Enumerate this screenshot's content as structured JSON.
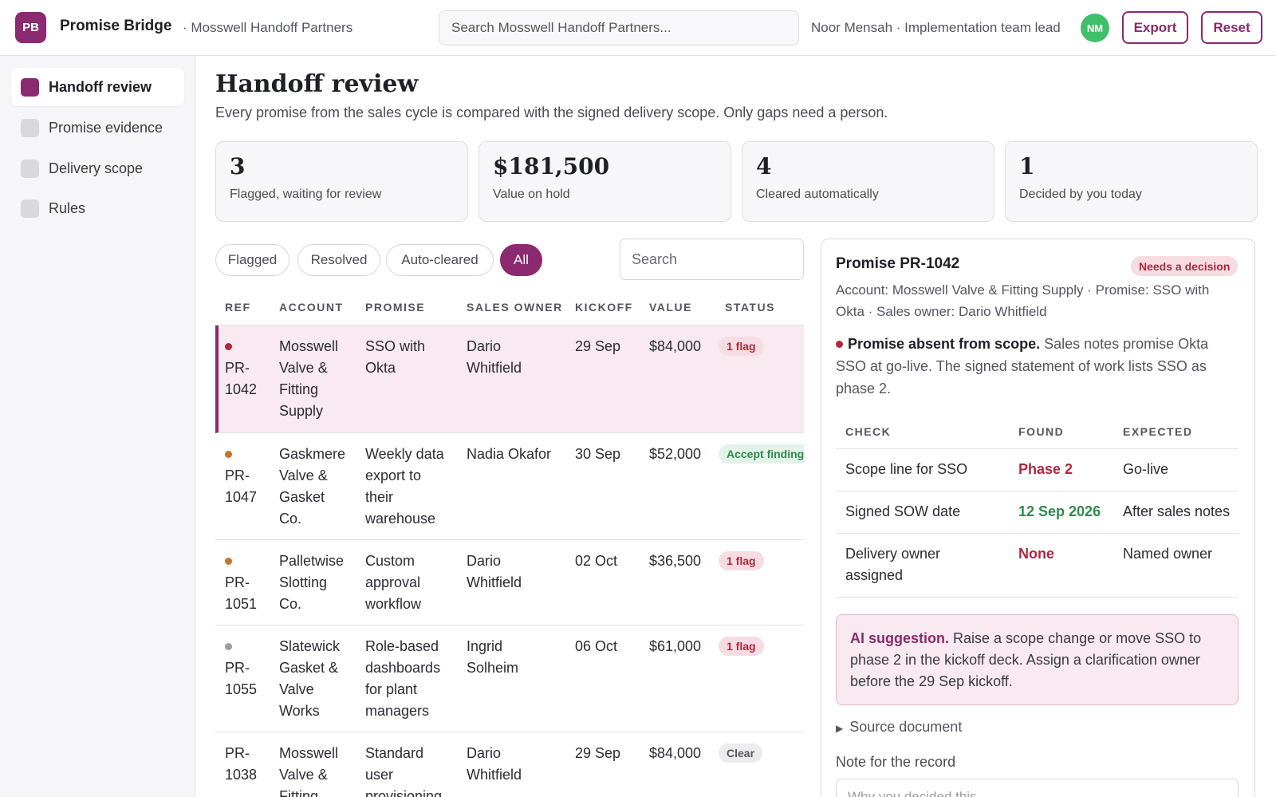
{
  "app": {
    "logo_initials": "PB",
    "name": "Promise Bridge",
    "workspace": "· Mosswell Handoff Partners",
    "search_placeholder": "Search Mosswell Handoff Partners...",
    "user": "Noor Mensah · Implementation team lead",
    "avatar_initials": "NM",
    "export_label": "Export",
    "reset_label": "Reset"
  },
  "sidebar": {
    "items": [
      {
        "label": "Handoff review",
        "active": true
      },
      {
        "label": "Promise evidence",
        "active": false
      },
      {
        "label": "Delivery scope",
        "active": false
      },
      {
        "label": "Rules",
        "active": false
      }
    ]
  },
  "page": {
    "title": "Handoff review",
    "subtitle": "Every promise from the sales cycle is compared with the signed delivery scope. Only gaps need a person."
  },
  "kpis": [
    {
      "value": "3",
      "label": "Flagged, waiting for review"
    },
    {
      "value": "$181,500",
      "label": "Value on hold"
    },
    {
      "value": "4",
      "label": "Cleared automatically"
    },
    {
      "value": "1",
      "label": "Decided by you today"
    }
  ],
  "filters": {
    "chips": [
      {
        "label": "Flagged",
        "active": false
      },
      {
        "label": "Resolved",
        "active": false
      },
      {
        "label": "Auto-cleared",
        "active": false
      },
      {
        "label": "All",
        "active": true
      }
    ],
    "search_placeholder": "Search"
  },
  "table": {
    "headers": [
      "REF",
      "ACCOUNT",
      "PROMISE",
      "SALES OWNER",
      "KICKOFF",
      "VALUE",
      "STATUS"
    ],
    "rows": [
      {
        "dot": "#b3263e",
        "ref": "PR-\n1042",
        "account": "Mosswell\nValve &\nFitting\nSupply",
        "promise": "SSO with\nOkta",
        "owner": "Dario\nWhitfield",
        "kickoff": "29 Sep",
        "value": "$84,000",
        "status": "1 flag",
        "status_kind": "flag"
      },
      {
        "dot": "#c7742a",
        "ref": "PR-\n1047",
        "account": "Gaskmere\nValve &\nGasket\nCo.",
        "promise": "Weekly data\nexport to\ntheir\nwarehouse",
        "owner": "Nadia Okafor",
        "kickoff": "30 Sep",
        "value": "$52,000",
        "status": "Accept findings",
        "status_kind": "accept"
      },
      {
        "dot": "#c7742a",
        "ref": "PR-\n1051",
        "account": "Palletwise\nSlotting\nCo.",
        "promise": "Custom\napproval\nworkflow",
        "owner": "Dario\nWhitfield",
        "kickoff": "02 Oct",
        "value": "$36,500",
        "status": "1 flag",
        "status_kind": "flag"
      },
      {
        "dot": "#9a9aa8",
        "ref": "PR-\n1055",
        "account": "Slatewick\nGasket &\nValve\nWorks",
        "promise": "Role-based\ndashboards\nfor plant\nmanagers",
        "owner": "Ingrid\nSolheim",
        "kickoff": "06 Oct",
        "value": "$61,000",
        "status": "1 flag",
        "status_kind": "flag"
      },
      {
        "dot": "",
        "ref": "PR-\n1038",
        "account": "Mosswell\nValve &\nFitting\nSupply",
        "promise": "Standard\nuser\nprovisioning",
        "owner": "Dario\nWhitfield",
        "kickoff": "29 Sep",
        "value": "$84,000",
        "status": "Clear",
        "status_kind": "clear"
      }
    ]
  },
  "detail": {
    "title": "Promise PR-1042",
    "badge": "Needs a decision",
    "meta": "Account: Mosswell Valve & Fitting Supply · Promise: SSO with Okta · Sales owner: Dario Whitfield",
    "finding_title": "Promise absent from scope.",
    "finding_text": " Sales notes promise Okta SSO at go-live. The signed statement of work lists SSO as phase 2.",
    "check_headers": [
      "CHECK",
      "FOUND",
      "EXPECTED"
    ],
    "checks": [
      {
        "check": "Scope line for SSO",
        "found": "Phase 2",
        "found_kind": "red",
        "expected": "Go-live"
      },
      {
        "check": "Signed SOW date",
        "found": "12 Sep 2026",
        "found_kind": "green",
        "expected": "After sales notes"
      },
      {
        "check": "Delivery owner\nassigned",
        "found": "None",
        "found_kind": "red",
        "expected": "Named owner"
      }
    ],
    "ai_label": "AI suggestion.",
    "ai_text": " Raise a scope change or move SSO to phase 2 in the kickoff deck. Assign a clarification owner before the 29 Sep kickoff.",
    "source_label": "Source document",
    "note_label": "Note for the record",
    "note_placeholder": "Why you decided this"
  },
  "colors": {
    "accent": "#8b2a6e",
    "flag": "#b3263e",
    "ok": "#2f8a4e",
    "avatar": "#3fbf6a"
  }
}
